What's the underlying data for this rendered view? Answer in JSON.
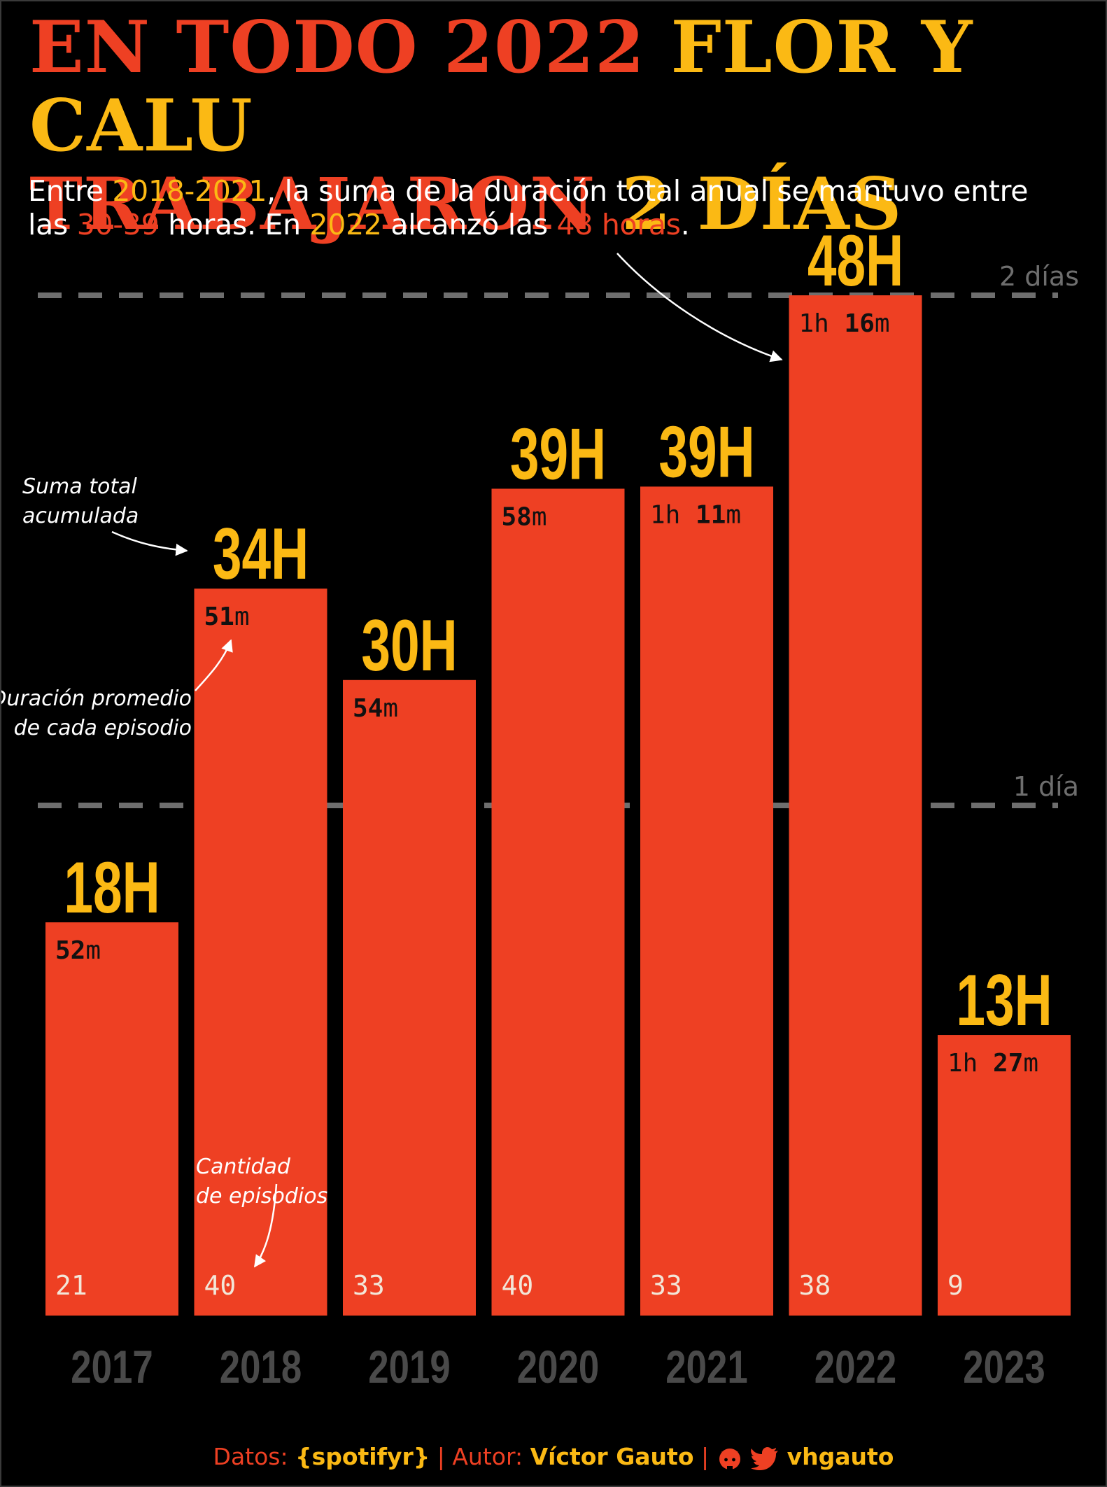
{
  "title": {
    "line1_a": "EN TODO 2022 ",
    "line1_b": "FLOR Y CALU",
    "line2_a": "TRABAJARON ",
    "line2_b": "2 DÍAS"
  },
  "subtitle": {
    "p1": "Entre ",
    "h1": "2018-2021",
    "p2": ", la suma de la duración total anual se mantuvo entre",
    "p3": "las ",
    "h2": "30-39",
    "p4": " horas. En ",
    "h3": "2022",
    "p5": " alcanzó las ",
    "h4": "48 horas",
    "p6": "."
  },
  "chart_data": {
    "type": "bar",
    "categories": [
      "2017",
      "2018",
      "2019",
      "2020",
      "2021",
      "2022",
      "2023"
    ],
    "series": [
      {
        "values": [
          18.5,
          34.2,
          29.9,
          38.9,
          39.0,
          48.0,
          13.2
        ]
      }
    ],
    "total_labels": [
      "18H",
      "34H",
      "30H",
      "39H",
      "39H",
      "48H",
      "13H"
    ],
    "avg_duration_labels": [
      {
        "h": "",
        "m": "52"
      },
      {
        "h": "",
        "m": "51"
      },
      {
        "h": "",
        "m": "54"
      },
      {
        "h": "",
        "m": "58"
      },
      {
        "h": "1",
        "m": "11"
      },
      {
        "h": "1",
        "m": "16"
      },
      {
        "h": "1",
        "m": "27"
      }
    ],
    "episode_counts": [
      "21",
      "40",
      "33",
      "40",
      "33",
      "38",
      "9"
    ],
    "reference_lines": [
      {
        "value": 24,
        "label": "1 día"
      },
      {
        "value": 48,
        "label": "2 días"
      }
    ],
    "ylim": [
      0,
      48
    ],
    "annotations": {
      "total": [
        "Suma total",
        "acumulada"
      ],
      "avg": [
        "Duración promedio",
        "de cada episodio"
      ],
      "episodes": [
        "Cantidad",
        "de episodios"
      ]
    },
    "colors": {
      "bar": "#ee4023",
      "label": "#fbb914",
      "year": "#4a4a4a",
      "ref": "#6e6e6e"
    }
  },
  "footer": {
    "datos_label": "Datos: ",
    "datos_value": "{spotifyr}",
    "sep": " | ",
    "autor_label": "Autor: ",
    "autor_value": "Víctor Gauto",
    "handle": "vhgauto",
    "icons": [
      "github-icon",
      "twitter-icon"
    ]
  }
}
